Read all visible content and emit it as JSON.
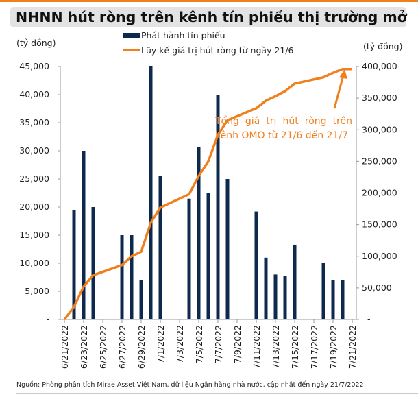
{
  "title": "NHNN hút ròng trên kênh tín phiếu thị trường mở",
  "left_unit": "(tỷ đồng)",
  "right_unit": "(tỷ đồng)",
  "annotation": "Tổng giá trị hút ròng trên kênh OMO từ 21/6 đến 21/7",
  "source": "Nguồn: Phòng phân tích Mirae Asset Việt Nam, dữ liệu Ngân hàng nhà nước, cập nhật đến ngày 21/7/2022",
  "colors": {
    "bar": "#0d2a4e",
    "line": "#f07f1e",
    "accent": "#f07f1e"
  },
  "chart_data": {
    "type": "bar+line",
    "title": "NHNN hút ròng trên kênh tín phiếu thị trường mở",
    "legend": [
      "Phát hành tín phiếu",
      "Lũy kế giá trị hút ròng từ ngày 21/6"
    ],
    "legend_placement": "top-center",
    "x": [
      "6/21/2022",
      "6/22/2022",
      "6/23/2022",
      "6/24/2022",
      "6/25/2022",
      "6/26/2022",
      "6/27/2022",
      "6/28/2022",
      "6/29/2022",
      "6/30/2022",
      "7/1/2022",
      "7/2/2022",
      "7/3/2022",
      "7/4/2022",
      "7/5/2022",
      "7/6/2022",
      "7/7/2022",
      "7/8/2022",
      "7/9/2022",
      "7/10/2022",
      "7/11/2022",
      "7/12/2022",
      "7/13/2022",
      "7/14/2022",
      "7/15/2022",
      "7/16/2022",
      "7/17/2022",
      "7/18/2022",
      "7/19/2022",
      "7/20/2022",
      "7/21/2022"
    ],
    "x_tick_labels": [
      "6/21/2022",
      "6/23/2022",
      "6/25/2022",
      "6/27/2022",
      "6/29/2022",
      "7/1/2022",
      "7/3/2022",
      "7/5/2022",
      "7/7/2022",
      "7/9/2022",
      "7/11/2022",
      "7/13/2022",
      "7/15/2022",
      "7/17/2022",
      "7/19/2022",
      "7/21/2022"
    ],
    "series": [
      {
        "name": "Phát hành tín phiếu",
        "type": "bar",
        "axis": "left",
        "values": [
          0,
          19500,
          30000,
          20000,
          0,
          0,
          15000,
          15000,
          7000,
          45000,
          25600,
          0,
          0,
          21500,
          30700,
          22500,
          40000,
          25000,
          0,
          0,
          19200,
          11000,
          8000,
          7700,
          13300,
          0,
          0,
          10100,
          7000,
          7000,
          100
        ]
      },
      {
        "name": "Lũy kế giá trị hút ròng từ ngày 21/6",
        "type": "line",
        "axis": "right",
        "values": [
          0,
          20000,
          52000,
          70000,
          null,
          null,
          86000,
          100000,
          107000,
          153000,
          177000,
          null,
          null,
          198000,
          227000,
          250000,
          292000,
          315000,
          null,
          null,
          334000,
          346000,
          353000,
          361000,
          373000,
          null,
          null,
          383000,
          390000,
          396000,
          396000
        ]
      }
    ],
    "y_left": {
      "label": "(tỷ đồng)",
      "range": [
        0,
        45000
      ],
      "ticks": [
        "-",
        "5,000",
        "10,000",
        "15,000",
        "20,000",
        "25,000",
        "30,000",
        "35,000",
        "40,000",
        "45,000"
      ]
    },
    "y_right": {
      "label": "(tỷ đồng)",
      "range": [
        0,
        400000
      ],
      "ticks": [
        "-",
        "50,000",
        "100,000",
        "150,000",
        "200,000",
        "250,000",
        "300,000",
        "350,000",
        "400,000"
      ]
    },
    "grid": false
  }
}
